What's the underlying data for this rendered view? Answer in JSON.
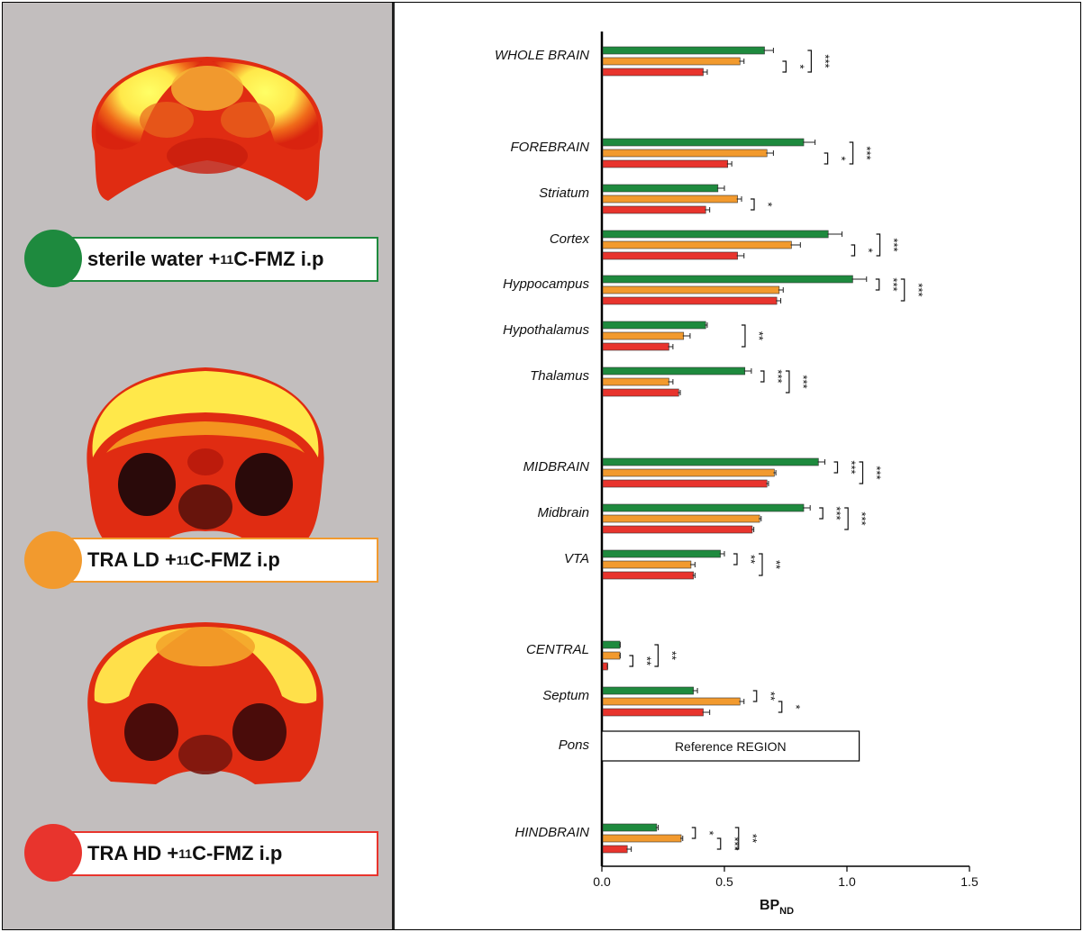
{
  "legend": [
    {
      "pre": "sterile water + ",
      "sup": "11",
      "post": "C-FMZ i.p",
      "color": "#1e8a3e",
      "border": "#1e8a3e"
    },
    {
      "pre": "TRA LD + ",
      "sup": "11",
      "post": "C-FMZ i.p",
      "color": "#f29a2e",
      "border": "#f29a2e"
    },
    {
      "pre": "TRA HD + ",
      "sup": "11",
      "post": "C-FMZ i.p",
      "color": "#e8342d",
      "border": "#e8342d"
    }
  ],
  "chart_data": {
    "type": "bar",
    "orientation": "horizontal",
    "xlabel": "BP",
    "xlabel_sub": "ND",
    "xlim": [
      0,
      1.5
    ],
    "xticks": [
      "0.0",
      "0.5",
      "1.0",
      "1.5"
    ],
    "series_colors": [
      "#1e8a3e",
      "#f29a2e",
      "#e8342d"
    ],
    "categories": [
      {
        "label": "WHOLE BRAIN",
        "values": [
          0.66,
          0.56,
          0.41
        ],
        "errors": [
          0.04,
          0.02,
          0.02
        ],
        "sig": [
          {
            "a": 1,
            "b": 2,
            "t": "*"
          },
          {
            "a": 0,
            "b": 2,
            "t": "***"
          }
        ]
      },
      {
        "label": "FOREBRAIN",
        "values": [
          0.82,
          0.67,
          0.51
        ],
        "errors": [
          0.05,
          0.03,
          0.02
        ],
        "sig": [
          {
            "a": 1,
            "b": 2,
            "t": "*"
          },
          {
            "a": 0,
            "b": 2,
            "t": "***"
          }
        ]
      },
      {
        "label": "Striatum",
        "values": [
          0.47,
          0.55,
          0.42
        ],
        "errors": [
          0.03,
          0.02,
          0.02
        ],
        "sig": [
          {
            "a": 1,
            "b": 2,
            "t": "*"
          }
        ]
      },
      {
        "label": "Cortex",
        "values": [
          0.92,
          0.77,
          0.55
        ],
        "errors": [
          0.06,
          0.04,
          0.03
        ],
        "sig": [
          {
            "a": 1,
            "b": 2,
            "t": "*"
          },
          {
            "a": 0,
            "b": 2,
            "t": "***"
          }
        ]
      },
      {
        "label": "Hyppocampus",
        "values": [
          1.02,
          0.72,
          0.71
        ],
        "errors": [
          0.06,
          0.02,
          0.02
        ],
        "sig": [
          {
            "a": 0,
            "b": 1,
            "t": "***"
          },
          {
            "a": 0,
            "b": 2,
            "t": "***"
          }
        ]
      },
      {
        "label": "Hypothalamus",
        "values": [
          0.42,
          0.33,
          0.27
        ],
        "errors": [
          0.01,
          0.03,
          0.02
        ],
        "sig": [
          {
            "a": 0,
            "b": 2,
            "t": "**"
          }
        ]
      },
      {
        "label": "Thalamus",
        "values": [
          0.58,
          0.27,
          0.31
        ],
        "errors": [
          0.03,
          0.02,
          0.01
        ],
        "sig": [
          {
            "a": 0,
            "b": 1,
            "t": "***"
          },
          {
            "a": 0,
            "b": 2,
            "t": "***"
          }
        ]
      },
      {
        "label": "MIDBRAIN",
        "values": [
          0.88,
          0.7,
          0.67
        ],
        "errors": [
          0.03,
          0.01,
          0.01
        ],
        "sig": [
          {
            "a": 0,
            "b": 1,
            "t": "***"
          },
          {
            "a": 0,
            "b": 2,
            "t": "***"
          }
        ]
      },
      {
        "label": "Midbrain",
        "values": [
          0.82,
          0.64,
          0.61
        ],
        "errors": [
          0.03,
          0.01,
          0.01
        ],
        "sig": [
          {
            "a": 0,
            "b": 1,
            "t": "***"
          },
          {
            "a": 0,
            "b": 2,
            "t": "***"
          }
        ]
      },
      {
        "label": "VTA",
        "values": [
          0.48,
          0.36,
          0.37
        ],
        "errors": [
          0.02,
          0.02,
          0.01
        ],
        "sig": [
          {
            "a": 0,
            "b": 1,
            "t": "**"
          },
          {
            "a": 0,
            "b": 2,
            "t": "**"
          }
        ]
      },
      {
        "label": "CENTRAL",
        "values": [
          0.07,
          0.07,
          0.02
        ],
        "errors": [
          0.005,
          0.005,
          0.003
        ],
        "sig": [
          {
            "a": 1,
            "b": 2,
            "t": "**"
          },
          {
            "a": 0,
            "b": 2,
            "t": "**"
          }
        ]
      },
      {
        "label": "Septum",
        "values": [
          0.37,
          0.56,
          0.41
        ],
        "errors": [
          0.02,
          0.02,
          0.03
        ],
        "sig": [
          {
            "a": 0,
            "b": 1,
            "t": "**"
          },
          {
            "a": 1,
            "b": 2,
            "t": "*"
          }
        ]
      },
      {
        "label": "Pons",
        "reference": "Reference REGION"
      },
      {
        "label": "HINDBRAIN",
        "values": [
          0.22,
          0.32,
          0.1
        ],
        "errors": [
          0.01,
          0.01,
          0.02
        ],
        "sig": [
          {
            "a": 0,
            "b": 1,
            "t": "*"
          },
          {
            "a": 1,
            "b": 2,
            "t": "***"
          },
          {
            "a": 0,
            "b": 2,
            "t": "**"
          }
        ]
      }
    ]
  }
}
